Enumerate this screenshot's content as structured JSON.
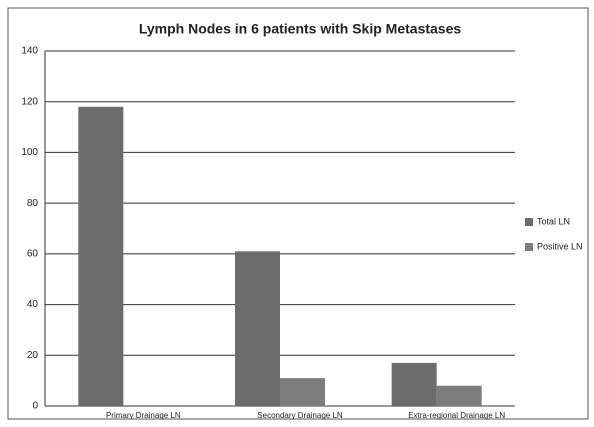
{
  "chart_data": {
    "type": "bar",
    "title": "Lymph Nodes in 6 patients with Skip Metastases",
    "categories": [
      "Primary Drainage LN",
      "Secondary Drainage LN",
      "Extra-regional Drainage LN"
    ],
    "series": [
      {
        "name": "Total LN",
        "color": "#6c6c6c",
        "values": [
          118,
          61,
          17
        ]
      },
      {
        "name": "Positive LN",
        "color": "#7c7c7c",
        "values": [
          0,
          11,
          8
        ]
      }
    ],
    "ylim": [
      0,
      140
    ],
    "yticks": [
      0,
      20,
      40,
      60,
      80,
      100,
      120,
      140
    ],
    "grid": true,
    "legend": "right"
  }
}
